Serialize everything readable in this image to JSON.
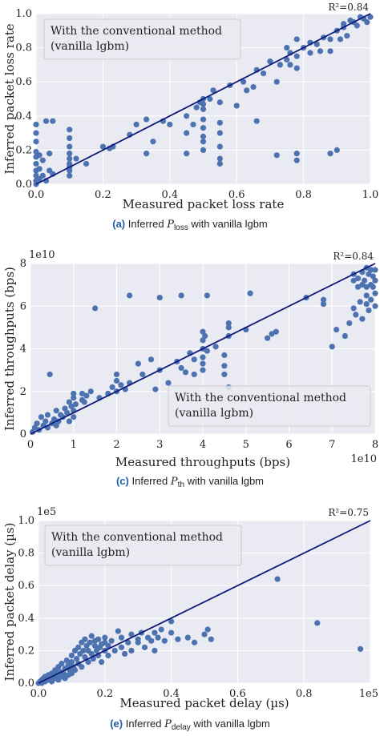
{
  "chart_data": [
    {
      "type": "scatter",
      "xlabel": "Measured packet loss rate",
      "ylabel": "Inferred packet loss rate",
      "xlim": [
        0,
        1.0
      ],
      "ylim": [
        0,
        1.0
      ],
      "xticks": [
        "0.0",
        "0.2",
        "0.4",
        "0.6",
        "0.8",
        "1.0"
      ],
      "yticks": [
        "0.0",
        "0.2",
        "0.4",
        "0.6",
        "0.8",
        "1.0"
      ],
      "x_exponent": "",
      "y_exponent": "",
      "r2_label": "R²=0.84",
      "legend": [
        "With the conventional method",
        "(vanilla lgbm)"
      ],
      "legend_position": "top-left",
      "fit_line": [
        [
          0,
          0
        ],
        [
          1,
          1
        ]
      ],
      "caption": {
        "label": "(a)",
        "pre": "Inferred",
        "symbol": "P",
        "sub": "loss",
        "post": "with vanilla lgbm"
      },
      "points": [
        [
          0.0,
          0.0
        ],
        [
          0.0,
          0.02
        ],
        [
          0.0,
          0.05
        ],
        [
          0.0,
          0.08
        ],
        [
          0.0,
          0.12
        ],
        [
          0.0,
          0.16
        ],
        [
          0.0,
          0.19
        ],
        [
          0.0,
          0.25
        ],
        [
          0.0,
          0.3
        ],
        [
          0.0,
          0.35
        ],
        [
          0.01,
          0.03
        ],
        [
          0.01,
          0.09
        ],
        [
          0.01,
          0.17
        ],
        [
          0.02,
          0.05
        ],
        [
          0.02,
          0.14
        ],
        [
          0.03,
          0.02
        ],
        [
          0.03,
          0.37
        ],
        [
          0.04,
          0.18
        ],
        [
          0.04,
          0.08
        ],
        [
          0.05,
          0.37
        ],
        [
          0.05,
          0.06
        ],
        [
          0.1,
          0.05
        ],
        [
          0.1,
          0.08
        ],
        [
          0.1,
          0.1
        ],
        [
          0.1,
          0.12
        ],
        [
          0.1,
          0.15
        ],
        [
          0.1,
          0.18
        ],
        [
          0.1,
          0.22
        ],
        [
          0.1,
          0.27
        ],
        [
          0.1,
          0.32
        ],
        [
          0.12,
          0.15
        ],
        [
          0.15,
          0.12
        ],
        [
          0.2,
          0.22
        ],
        [
          0.22,
          0.21
        ],
        [
          0.23,
          0.22
        ],
        [
          0.28,
          0.29
        ],
        [
          0.3,
          0.35
        ],
        [
          0.33,
          0.38
        ],
        [
          0.35,
          0.25
        ],
        [
          0.33,
          0.18
        ],
        [
          0.38,
          0.37
        ],
        [
          0.4,
          0.35
        ],
        [
          0.45,
          0.4
        ],
        [
          0.45,
          0.3
        ],
        [
          0.45,
          0.18
        ],
        [
          0.47,
          0.35
        ],
        [
          0.48,
          0.45
        ],
        [
          0.49,
          0.48
        ],
        [
          0.5,
          0.47
        ],
        [
          0.5,
          0.5
        ],
        [
          0.5,
          0.44
        ],
        [
          0.5,
          0.38
        ],
        [
          0.5,
          0.33
        ],
        [
          0.5,
          0.28
        ],
        [
          0.5,
          0.25
        ],
        [
          0.5,
          0.2
        ],
        [
          0.52,
          0.5
        ],
        [
          0.53,
          0.55
        ],
        [
          0.55,
          0.48
        ],
        [
          0.55,
          0.36
        ],
        [
          0.55,
          0.3
        ],
        [
          0.55,
          0.22
        ],
        [
          0.55,
          0.15
        ],
        [
          0.55,
          0.12
        ],
        [
          0.58,
          0.58
        ],
        [
          0.6,
          0.46
        ],
        [
          0.62,
          0.6
        ],
        [
          0.63,
          0.55
        ],
        [
          0.65,
          0.57
        ],
        [
          0.66,
          0.67
        ],
        [
          0.66,
          0.37
        ],
        [
          0.68,
          0.65
        ],
        [
          0.7,
          0.72
        ],
        [
          0.72,
          0.6
        ],
        [
          0.72,
          0.17
        ],
        [
          0.73,
          0.7
        ],
        [
          0.75,
          0.73
        ],
        [
          0.75,
          0.8
        ],
        [
          0.76,
          0.77
        ],
        [
          0.76,
          0.7
        ],
        [
          0.78,
          0.85
        ],
        [
          0.78,
          0.75
        ],
        [
          0.78,
          0.68
        ],
        [
          0.78,
          0.18
        ],
        [
          0.78,
          0.14
        ],
        [
          0.8,
          0.8
        ],
        [
          0.82,
          0.83
        ],
        [
          0.82,
          0.77
        ],
        [
          0.84,
          0.82
        ],
        [
          0.85,
          0.78
        ],
        [
          0.86,
          0.86
        ],
        [
          0.88,
          0.85
        ],
        [
          0.88,
          0.78
        ],
        [
          0.88,
          0.18
        ],
        [
          0.9,
          0.9
        ],
        [
          0.9,
          0.2
        ],
        [
          0.91,
          0.85
        ],
        [
          0.92,
          0.92
        ],
        [
          0.92,
          0.94
        ],
        [
          0.93,
          0.87
        ],
        [
          0.94,
          0.96
        ],
        [
          0.95,
          0.95
        ],
        [
          0.96,
          0.93
        ],
        [
          0.97,
          0.98
        ],
        [
          0.98,
          0.97
        ],
        [
          0.99,
          0.95
        ],
        [
          1.0,
          0.98
        ]
      ]
    },
    {
      "type": "scatter",
      "xlabel": "Measured throughputs (bps)",
      "ylabel": "Inferred throughputs (bps)",
      "xlim": [
        0,
        8
      ],
      "ylim": [
        0,
        8
      ],
      "xticks": [
        "0",
        "1",
        "2",
        "3",
        "4",
        "5",
        "6",
        "7",
        "8"
      ],
      "yticks": [
        "0",
        "2",
        "4",
        "6",
        "8"
      ],
      "x_exponent": "1e10",
      "y_exponent": "1e10",
      "r2_label": "R²=0.84",
      "legend": [
        "With the conventional method",
        "(vanilla lgbm)"
      ],
      "legend_position": "bottom-right",
      "fit_line": [
        [
          0,
          0
        ],
        [
          8,
          8
        ]
      ],
      "caption": {
        "label": "(c)",
        "pre": "Inferred",
        "symbol": "P",
        "sub": "th",
        "post": "with vanilla lgbm"
      },
      "points": [
        [
          0.05,
          0.1
        ],
        [
          0.1,
          0.3
        ],
        [
          0.15,
          0.5
        ],
        [
          0.2,
          0.2
        ],
        [
          0.25,
          0.8
        ],
        [
          0.3,
          0.4
        ],
        [
          0.35,
          0.6
        ],
        [
          0.4,
          0.3
        ],
        [
          0.4,
          0.9
        ],
        [
          0.45,
          2.8
        ],
        [
          0.5,
          0.5
        ],
        [
          0.55,
          0.7
        ],
        [
          0.6,
          0.4
        ],
        [
          0.6,
          1.1
        ],
        [
          0.65,
          0.6
        ],
        [
          0.7,
          0.9
        ],
        [
          0.75,
          0.8
        ],
        [
          0.8,
          1.2
        ],
        [
          0.85,
          1.0
        ],
        [
          0.9,
          1.5
        ],
        [
          0.9,
          0.6
        ],
        [
          0.95,
          1.3
        ],
        [
          1.0,
          1.7
        ],
        [
          1.0,
          0.8
        ],
        [
          1.0,
          1.1
        ],
        [
          1.0,
          1.9
        ],
        [
          1.05,
          1.4
        ],
        [
          1.2,
          1.6
        ],
        [
          1.2,
          1.9
        ],
        [
          1.25,
          1.5
        ],
        [
          1.3,
          1.8
        ],
        [
          1.4,
          2.0
        ],
        [
          1.5,
          5.9
        ],
        [
          1.6,
          1.7
        ],
        [
          1.8,
          1.9
        ],
        [
          1.9,
          2.2
        ],
        [
          2.0,
          2.5
        ],
        [
          2.0,
          2.0
        ],
        [
          2.0,
          2.8
        ],
        [
          2.1,
          2.3
        ],
        [
          2.2,
          2.1
        ],
        [
          2.3,
          6.5
        ],
        [
          2.3,
          2.4
        ],
        [
          2.5,
          3.3
        ],
        [
          2.6,
          2.8
        ],
        [
          2.8,
          3.5
        ],
        [
          2.9,
          2.1
        ],
        [
          3.0,
          3.0
        ],
        [
          3.0,
          6.4
        ],
        [
          3.2,
          2.4
        ],
        [
          3.4,
          3.4
        ],
        [
          3.5,
          3.1
        ],
        [
          3.5,
          6.5
        ],
        [
          3.6,
          2.9
        ],
        [
          3.7,
          3.8
        ],
        [
          3.8,
          3.5
        ],
        [
          3.8,
          2.8
        ],
        [
          4.0,
          4.0
        ],
        [
          4.0,
          3.6
        ],
        [
          4.0,
          4.4
        ],
        [
          4.0,
          3.3
        ],
        [
          4.0,
          4.8
        ],
        [
          4.0,
          3.0
        ],
        [
          4.05,
          4.6
        ],
        [
          4.1,
          3.9
        ],
        [
          4.1,
          6.5
        ],
        [
          4.3,
          4.1
        ],
        [
          4.5,
          3.7
        ],
        [
          4.5,
          3.2
        ],
        [
          4.5,
          2.8
        ],
        [
          4.6,
          5.0
        ],
        [
          4.6,
          4.6
        ],
        [
          4.6,
          5.2
        ],
        [
          4.6,
          2.2
        ],
        [
          5.0,
          4.9
        ],
        [
          5.1,
          6.6
        ],
        [
          5.5,
          4.5
        ],
        [
          5.6,
          4.7
        ],
        [
          5.7,
          4.8
        ],
        [
          6.4,
          6.4
        ],
        [
          6.8,
          6.3
        ],
        [
          6.8,
          6.1
        ],
        [
          7.0,
          4.1
        ],
        [
          7.1,
          4.9
        ],
        [
          7.3,
          4.6
        ],
        [
          7.4,
          5.2
        ],
        [
          7.5,
          5.9
        ],
        [
          7.5,
          7.2
        ],
        [
          7.5,
          7.5
        ],
        [
          7.55,
          5.6
        ],
        [
          7.6,
          6.9
        ],
        [
          7.6,
          7.3
        ],
        [
          7.65,
          6.2
        ],
        [
          7.7,
          7.6
        ],
        [
          7.7,
          7.0
        ],
        [
          7.7,
          5.4
        ],
        [
          7.75,
          7.2
        ],
        [
          7.8,
          7.8
        ],
        [
          7.8,
          6.9
        ],
        [
          7.8,
          6.5
        ],
        [
          7.8,
          6.1
        ],
        [
          7.85,
          7.5
        ],
        [
          7.85,
          5.8
        ],
        [
          7.9,
          7.0
        ],
        [
          7.9,
          7.7
        ],
        [
          7.9,
          6.3
        ],
        [
          7.95,
          6.9
        ],
        [
          7.95,
          7.4
        ],
        [
          8.0,
          6.6
        ],
        [
          8.0,
          7.2
        ],
        [
          8.0,
          7.7
        ],
        [
          8.0,
          6.0
        ]
      ]
    },
    {
      "type": "scatter",
      "xlabel": "Measured packet delay (µs)",
      "ylabel": "Inferred packet delay (µs)",
      "xlim": [
        0,
        1.0
      ],
      "ylim": [
        0,
        1.0
      ],
      "xticks": [
        "0.0",
        "0.2",
        "0.4",
        "0.6",
        "0.8",
        "1e5"
      ],
      "yticks": [
        "0.0",
        "0.2",
        "0.4",
        "0.6",
        "0.8",
        "1.0"
      ],
      "x_exponent": "",
      "y_exponent": "1e5",
      "r2_label": "R²=0.75",
      "legend": [
        "With the conventional method",
        "(vanilla lgbm)"
      ],
      "legend_position": "top-left",
      "fit_line": [
        [
          0,
          0
        ],
        [
          1,
          1
        ]
      ],
      "caption": {
        "label": "(e)",
        "pre": "Inferred",
        "symbol": "P",
        "sub": "delay",
        "post": "with vanilla lgbm"
      },
      "points": [
        [
          0.0,
          0.0
        ],
        [
          0.005,
          0.01
        ],
        [
          0.01,
          0.02
        ],
        [
          0.01,
          0.0
        ],
        [
          0.015,
          0.03
        ],
        [
          0.02,
          0.01
        ],
        [
          0.02,
          0.04
        ],
        [
          0.025,
          0.02
        ],
        [
          0.03,
          0.05
        ],
        [
          0.03,
          0.02
        ],
        [
          0.035,
          0.03
        ],
        [
          0.04,
          0.06
        ],
        [
          0.04,
          0.01
        ],
        [
          0.045,
          0.04
        ],
        [
          0.05,
          0.08
        ],
        [
          0.05,
          0.03
        ],
        [
          0.055,
          0.05
        ],
        [
          0.06,
          0.1
        ],
        [
          0.06,
          0.02
        ],
        [
          0.065,
          0.07
        ],
        [
          0.07,
          0.04
        ],
        [
          0.07,
          0.12
        ],
        [
          0.075,
          0.06
        ],
        [
          0.08,
          0.09
        ],
        [
          0.08,
          0.03
        ],
        [
          0.085,
          0.14
        ],
        [
          0.09,
          0.05
        ],
        [
          0.09,
          0.11
        ],
        [
          0.095,
          0.08
        ],
        [
          0.1,
          0.17
        ],
        [
          0.1,
          0.06
        ],
        [
          0.1,
          0.13
        ],
        [
          0.105,
          0.1
        ],
        [
          0.11,
          0.2
        ],
        [
          0.11,
          0.08
        ],
        [
          0.115,
          0.15
        ],
        [
          0.12,
          0.22
        ],
        [
          0.12,
          0.12
        ],
        [
          0.125,
          0.18
        ],
        [
          0.13,
          0.25
        ],
        [
          0.13,
          0.1
        ],
        [
          0.135,
          0.2
        ],
        [
          0.14,
          0.16
        ],
        [
          0.14,
          0.27
        ],
        [
          0.145,
          0.23
        ],
        [
          0.15,
          0.13
        ],
        [
          0.15,
          0.2
        ],
        [
          0.155,
          0.25
        ],
        [
          0.16,
          0.18
        ],
        [
          0.16,
          0.29
        ],
        [
          0.165,
          0.15
        ],
        [
          0.17,
          0.23
        ],
        [
          0.17,
          0.26
        ],
        [
          0.175,
          0.2
        ],
        [
          0.18,
          0.17
        ],
        [
          0.18,
          0.27
        ],
        [
          0.185,
          0.22
        ],
        [
          0.19,
          0.24
        ],
        [
          0.19,
          0.13
        ],
        [
          0.2,
          0.25
        ],
        [
          0.2,
          0.28
        ],
        [
          0.2,
          0.2
        ],
        [
          0.21,
          0.23
        ],
        [
          0.21,
          0.17
        ],
        [
          0.22,
          0.26
        ],
        [
          0.23,
          0.2
        ],
        [
          0.24,
          0.32
        ],
        [
          0.25,
          0.22
        ],
        [
          0.25,
          0.28
        ],
        [
          0.26,
          0.18
        ],
        [
          0.27,
          0.25
        ],
        [
          0.28,
          0.3
        ],
        [
          0.28,
          0.2
        ],
        [
          0.3,
          0.27
        ],
        [
          0.3,
          0.25
        ],
        [
          0.31,
          0.31
        ],
        [
          0.32,
          0.22
        ],
        [
          0.33,
          0.28
        ],
        [
          0.34,
          0.26
        ],
        [
          0.35,
          0.31
        ],
        [
          0.35,
          0.2
        ],
        [
          0.36,
          0.28
        ],
        [
          0.37,
          0.33
        ],
        [
          0.38,
          0.26
        ],
        [
          0.4,
          0.38
        ],
        [
          0.4,
          0.31
        ],
        [
          0.42,
          0.27
        ],
        [
          0.45,
          0.28
        ],
        [
          0.47,
          0.25
        ],
        [
          0.5,
          0.3
        ],
        [
          0.51,
          0.33
        ],
        [
          0.52,
          0.27
        ],
        [
          0.72,
          0.64
        ],
        [
          0.84,
          0.37
        ],
        [
          0.97,
          0.21
        ]
      ]
    }
  ]
}
